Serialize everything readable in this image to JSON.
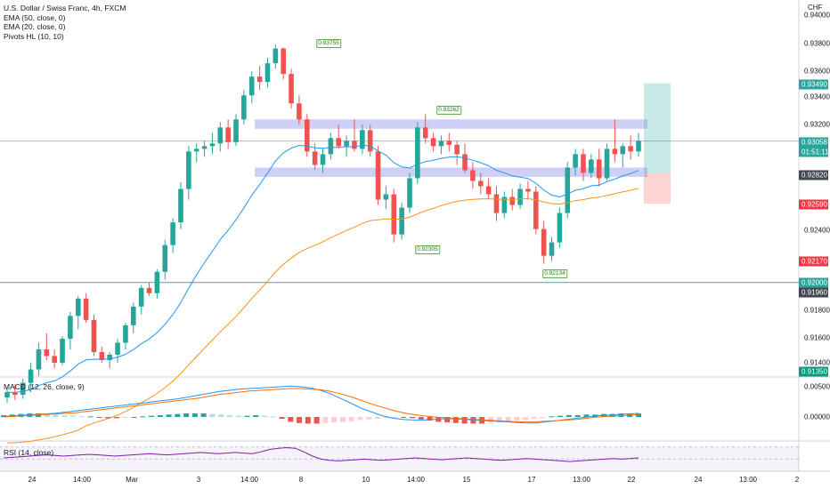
{
  "legend": {
    "title": "U.S. Dollar / Swiss Franc, 4h, FXCM",
    "ema50": "EMA (50, close, 0)",
    "ema20": "EMA (20, close, 0)",
    "pivots": "Pivots HL (10, 10)"
  },
  "macd_label": "MACD (12, 26, close, 9)",
  "rsi_label": "RSI (14, close)",
  "currency": "CHF",
  "price_ticks": [
    "0.94000",
    "0.93800",
    "0.93600",
    "0.93400",
    "0.93200",
    "0.92400",
    "0.91800",
    "0.91600",
    "0.91400"
  ],
  "price_labels": {
    "target": "0.93490",
    "current": "0.93058",
    "countdown": "01:51:11",
    "entry": "0.92820",
    "stop": "0.92590",
    "red_level": "0.92170",
    "teal_level": "0.92000",
    "prev_low": "0.91960",
    "low_level": "0.91350"
  },
  "macd_ticks": [
    "0.00500",
    "0.00000"
  ],
  "time_ticks": [
    "24",
    "14:00",
    "Mar",
    "3",
    "14:00",
    "8",
    "10",
    "14:00",
    "15",
    "17",
    "13:00",
    "22",
    "24",
    "13:00",
    "2"
  ],
  "pivots": {
    "high1": "0.93755",
    "high2": "0.93262",
    "low1": "0.92305",
    "low2": "0.92134"
  },
  "chart_data": {
    "type": "candlestick",
    "symbol": "U.S. Dollar / Swiss Franc",
    "timeframe": "4h",
    "exchange": "FXCM",
    "ylim": [
      0.9134,
      0.9408
    ],
    "colors": {
      "up": "#26a69a",
      "down": "#ef5350",
      "ema20": "#2196f3",
      "ema50": "#f7931a"
    },
    "candles": [
      [
        0.9114,
        0.9122,
        0.911,
        0.9118
      ],
      [
        0.9118,
        0.9124,
        0.9112,
        0.9116
      ],
      [
        0.9116,
        0.9128,
        0.9113,
        0.9125
      ],
      [
        0.9125,
        0.914,
        0.9118,
        0.9135
      ],
      [
        0.9135,
        0.9155,
        0.913,
        0.915
      ],
      [
        0.915,
        0.9162,
        0.9142,
        0.9145
      ],
      [
        0.9145,
        0.915,
        0.9136,
        0.914
      ],
      [
        0.914,
        0.916,
        0.9138,
        0.9158
      ],
      [
        0.9158,
        0.9178,
        0.915,
        0.9175
      ],
      [
        0.9175,
        0.919,
        0.9165,
        0.9188
      ],
      [
        0.9188,
        0.9192,
        0.917,
        0.9172
      ],
      [
        0.9172,
        0.9176,
        0.9145,
        0.9148
      ],
      [
        0.9148,
        0.9152,
        0.914,
        0.9142
      ],
      [
        0.9142,
        0.9148,
        0.9136,
        0.9146
      ],
      [
        0.9146,
        0.9158,
        0.914,
        0.9155
      ],
      [
        0.9155,
        0.917,
        0.915,
        0.9168
      ],
      [
        0.9168,
        0.9185,
        0.9162,
        0.9182
      ],
      [
        0.9182,
        0.9198,
        0.9176,
        0.9196
      ],
      [
        0.9196,
        0.92,
        0.919,
        0.9192
      ],
      [
        0.9192,
        0.921,
        0.9188,
        0.9208
      ],
      [
        0.9208,
        0.9232,
        0.9202,
        0.9228
      ],
      [
        0.9228,
        0.9248,
        0.9222,
        0.9245
      ],
      [
        0.9245,
        0.9275,
        0.924,
        0.927
      ],
      [
        0.927,
        0.9302,
        0.9262,
        0.9298
      ],
      [
        0.9298,
        0.9304,
        0.929,
        0.93
      ],
      [
        0.93,
        0.9306,
        0.9294,
        0.9302
      ],
      [
        0.9302,
        0.9312,
        0.9296,
        0.9304
      ],
      [
        0.9304,
        0.932,
        0.9298,
        0.9316
      ],
      [
        0.9316,
        0.9322,
        0.93,
        0.9305
      ],
      [
        0.9305,
        0.9326,
        0.9302,
        0.9322
      ],
      [
        0.9322,
        0.9344,
        0.9318,
        0.934
      ],
      [
        0.934,
        0.9358,
        0.9334,
        0.9354
      ],
      [
        0.9354,
        0.9362,
        0.9344,
        0.935
      ],
      [
        0.935,
        0.9368,
        0.9346,
        0.9364
      ],
      [
        0.9364,
        0.9378,
        0.936,
        0.9375
      ],
      [
        0.9375,
        0.9376,
        0.9352,
        0.9356
      ],
      [
        0.9356,
        0.936,
        0.933,
        0.9334
      ],
      [
        0.9334,
        0.934,
        0.9318,
        0.9322
      ],
      [
        0.9322,
        0.9326,
        0.9294,
        0.9298
      ],
      [
        0.9298,
        0.9304,
        0.9284,
        0.9288
      ],
      [
        0.9288,
        0.93,
        0.9282,
        0.9296
      ],
      [
        0.9296,
        0.9312,
        0.9292,
        0.9308
      ],
      [
        0.9308,
        0.9318,
        0.93,
        0.9302
      ],
      [
        0.9302,
        0.931,
        0.9294,
        0.9306
      ],
      [
        0.9306,
        0.9322,
        0.9298,
        0.93
      ],
      [
        0.93,
        0.9318,
        0.9296,
        0.9314
      ],
      [
        0.9314,
        0.9318,
        0.9294,
        0.9298
      ],
      [
        0.9298,
        0.9302,
        0.9258,
        0.9262
      ],
      [
        0.9262,
        0.9272,
        0.9255,
        0.9266
      ],
      [
        0.9266,
        0.927,
        0.923,
        0.9236
      ],
      [
        0.9236,
        0.926,
        0.9232,
        0.9256
      ],
      [
        0.9256,
        0.9282,
        0.9252,
        0.9278
      ],
      [
        0.9278,
        0.932,
        0.9274,
        0.9316
      ],
      [
        0.9316,
        0.9326,
        0.9304,
        0.9308
      ],
      [
        0.9308,
        0.9312,
        0.9298,
        0.9302
      ],
      [
        0.9302,
        0.931,
        0.9296,
        0.9306
      ],
      [
        0.9306,
        0.9312,
        0.9298,
        0.9303
      ],
      [
        0.9303,
        0.9306,
        0.9288,
        0.9296
      ],
      [
        0.9296,
        0.9304,
        0.9282,
        0.9284
      ],
      [
        0.9284,
        0.929,
        0.927,
        0.9276
      ],
      [
        0.9276,
        0.9282,
        0.9266,
        0.9272
      ],
      [
        0.9272,
        0.9278,
        0.9262,
        0.9266
      ],
      [
        0.9266,
        0.9272,
        0.9246,
        0.9252
      ],
      [
        0.9252,
        0.9268,
        0.9248,
        0.9264
      ],
      [
        0.9264,
        0.927,
        0.9254,
        0.9258
      ],
      [
        0.9258,
        0.9274,
        0.9255,
        0.927
      ],
      [
        0.927,
        0.9276,
        0.9262,
        0.9268
      ],
      [
        0.9268,
        0.9272,
        0.9236,
        0.924
      ],
      [
        0.924,
        0.9246,
        0.9214,
        0.922
      ],
      [
        0.922,
        0.9234,
        0.9216,
        0.923
      ],
      [
        0.923,
        0.9256,
        0.9226,
        0.9252
      ],
      [
        0.9252,
        0.929,
        0.9248,
        0.9286
      ],
      [
        0.9286,
        0.93,
        0.928,
        0.9296
      ],
      [
        0.9296,
        0.93,
        0.9276,
        0.9282
      ],
      [
        0.9282,
        0.9296,
        0.9278,
        0.9292
      ],
      [
        0.9292,
        0.93,
        0.9272,
        0.9278
      ],
      [
        0.9278,
        0.9304,
        0.9276,
        0.93
      ],
      [
        0.93,
        0.9322,
        0.929,
        0.9296
      ],
      [
        0.9296,
        0.9304,
        0.9286,
        0.9302
      ],
      [
        0.9302,
        0.931,
        0.9292,
        0.9298
      ],
      [
        0.9298,
        0.9312,
        0.9294,
        0.9306
      ]
    ],
    "zones": [
      {
        "from": 0.9315,
        "to": 0.9322,
        "color": "#c5c8f5"
      },
      {
        "from": 0.9279,
        "to": 0.9286,
        "color": "#c5c8f5"
      }
    ],
    "horizontal_lines": [
      {
        "price": 0.93058,
        "color": "#b2b5be"
      },
      {
        "price": 0.92,
        "color": "#4ca59a"
      }
    ],
    "position": {
      "entry": 0.9282,
      "target": 0.9349,
      "stop": 0.9259
    },
    "macd": {
      "ylim": [
        -0.002,
        0.006
      ],
      "histogram": [
        0.0003,
        0.0004,
        0.0005,
        0.0006,
        0.0006,
        0.0005,
        0.0004,
        0.0003,
        0.0002,
        0.0001,
        0.0001,
        -0.0001,
        -0.0002,
        -0.0002,
        -0.0001,
        0.0,
        0.0001,
        0.0002,
        0.0003,
        0.0004,
        0.0005,
        0.0006,
        0.0006,
        0.0006,
        0.0005,
        0.0004,
        0.0003,
        0.0002,
        0.0002,
        0.0003,
        0.0002,
        0.0001,
        -0.0003,
        -0.0008,
        -0.001,
        -0.0011,
        -0.0011,
        -0.001,
        -0.0009,
        -0.0008,
        -0.0007,
        -0.0005,
        -0.0004,
        -0.0003,
        -0.0002,
        -0.0001,
        0.0,
        -0.0002,
        -0.0004,
        -0.0006,
        -0.0008,
        -0.0009,
        -0.001,
        -0.0011,
        -0.0011,
        -0.0011,
        -0.001,
        -0.0009,
        -0.0008,
        -0.0006,
        -0.0005,
        -0.0003,
        -0.0002,
        0.0001,
        0.0002,
        0.0003,
        0.0003,
        0.0004,
        0.0004,
        0.0005,
        0.0005,
        0.0006,
        0.0006,
        0.0006
      ],
      "macd_line": [
        0.0001,
        0.0002,
        0.0003,
        0.0004,
        0.0005,
        0.0006,
        0.0008,
        0.001,
        0.0012,
        0.0014,
        0.0016,
        0.0018,
        0.002,
        0.0022,
        0.0024,
        0.0026,
        0.0028,
        0.003,
        0.0033,
        0.0036,
        0.0039,
        0.0042,
        0.0044,
        0.0046,
        0.0047,
        0.0048,
        0.0049,
        0.005,
        0.0051,
        0.005,
        0.0048,
        0.0044,
        0.0038,
        0.003,
        0.0022,
        0.0014,
        0.0008,
        0.0002,
        -0.0002,
        -0.0004,
        -0.0005,
        -0.0005,
        -0.0004,
        -0.0003,
        -0.0003,
        -0.0004,
        -0.0005,
        -0.0006,
        -0.0007,
        -0.0008,
        -0.0009,
        -0.001,
        -0.001,
        -0.0008,
        -0.0006,
        -0.0004,
        -0.0002,
        0.0,
        0.0002,
        0.0003,
        0.0004,
        0.0005,
        0.0006
      ],
      "signal_line": [
        0.0,
        0.0001,
        0.0002,
        0.0003,
        0.0004,
        0.0005,
        0.0006,
        0.0007,
        0.0009,
        0.0011,
        0.0013,
        0.0015,
        0.0017,
        0.0019,
        0.0021,
        0.0023,
        0.0025,
        0.0027,
        0.0029,
        0.0031,
        0.0034,
        0.0037,
        0.0039,
        0.0041,
        0.0043,
        0.0044,
        0.0045,
        0.0046,
        0.0047,
        0.0047,
        0.0046,
        0.0045,
        0.0042,
        0.0038,
        0.0033,
        0.0027,
        0.0021,
        0.0016,
        0.0011,
        0.0007,
        0.0004,
        0.0002,
        0.0,
        -0.0001,
        -0.0002,
        -0.0003,
        -0.0004,
        -0.0005,
        -0.0006,
        -0.0007,
        -0.0008,
        -0.0008,
        -0.0008,
        -0.0007,
        -0.0006,
        -0.0005,
        -0.0004,
        -0.0002,
        0.0,
        0.0001,
        0.0002,
        0.0003,
        0.0004
      ]
    },
    "rsi": {
      "ylim": [
        30,
        80
      ],
      "values": [
        52,
        53,
        54,
        55,
        56,
        57,
        56,
        55,
        56,
        57,
        58,
        57,
        56,
        55,
        56,
        57,
        58,
        59,
        58,
        57,
        58,
        59,
        60,
        61,
        60,
        59,
        60,
        61,
        60,
        59,
        62,
        66,
        68,
        69,
        68,
        62,
        55,
        50,
        48,
        47,
        48,
        49,
        50,
        49,
        48,
        49,
        50,
        51,
        52,
        51,
        50,
        49,
        50,
        51,
        52,
        51,
        50,
        49,
        48,
        49,
        50,
        51,
        50,
        49,
        48,
        47,
        46,
        47,
        48,
        49,
        50,
        51,
        50,
        51,
        52
      ]
    }
  }
}
